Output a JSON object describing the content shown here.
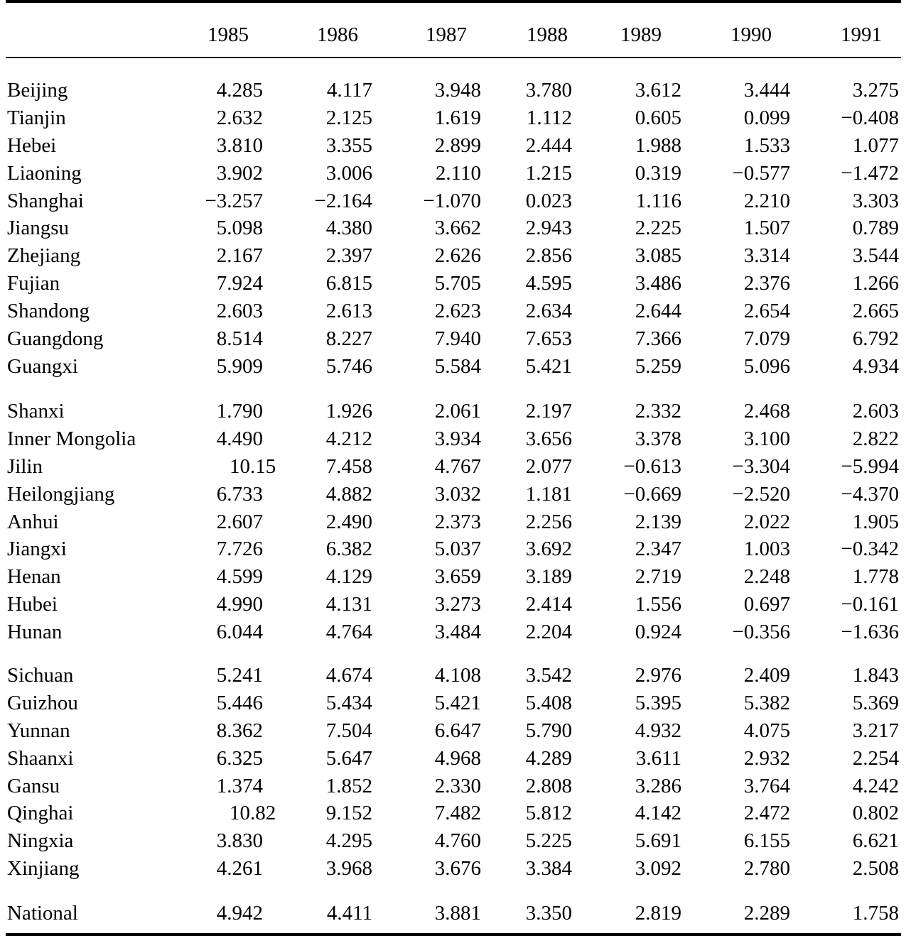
{
  "table": {
    "years": [
      "1985",
      "1986",
      "1987",
      "1988",
      "1989",
      "1990",
      "1991"
    ],
    "groups": [
      {
        "rows": [
          {
            "region": "Beijing",
            "values": [
              "4.285",
              "4.117",
              "3.948",
              "3.780",
              "3.612",
              "3.444",
              "3.275"
            ]
          },
          {
            "region": "Tianjin",
            "values": [
              "2.632",
              "2.125",
              "1.619",
              "1.112",
              "0.605",
              "0.099",
              "−0.408"
            ]
          },
          {
            "region": "Hebei",
            "values": [
              "3.810",
              "3.355",
              "2.899",
              "2.444",
              "1.988",
              "1.533",
              "1.077"
            ]
          },
          {
            "region": "Liaoning",
            "values": [
              "3.902",
              "3.006",
              "2.110",
              "1.215",
              "0.319",
              "−0.577",
              "−1.472"
            ]
          },
          {
            "region": "Shanghai",
            "values": [
              "−3.257",
              "−2.164",
              "−1.070",
              "0.023",
              "1.116",
              "2.210",
              "3.303"
            ]
          },
          {
            "region": "Jiangsu",
            "values": [
              "5.098",
              "4.380",
              "3.662",
              "2.943",
              "2.225",
              "1.507",
              "0.789"
            ]
          },
          {
            "region": "Zhejiang",
            "values": [
              "2.167",
              "2.397",
              "2.626",
              "2.856",
              "3.085",
              "3.314",
              "3.544"
            ]
          },
          {
            "region": "Fujian",
            "values": [
              "7.924",
              "6.815",
              "5.705",
              "4.595",
              "3.486",
              "2.376",
              "1.266"
            ]
          },
          {
            "region": "Shandong",
            "values": [
              "2.603",
              "2.613",
              "2.623",
              "2.634",
              "2.644",
              "2.654",
              "2.665"
            ]
          },
          {
            "region": "Guangdong",
            "values": [
              "8.514",
              "8.227",
              "7.940",
              "7.653",
              "7.366",
              "7.079",
              "6.792"
            ]
          },
          {
            "region": "Guangxi",
            "values": [
              "5.909",
              "5.746",
              "5.584",
              "5.421",
              "5.259",
              "5.096",
              "4.934"
            ]
          }
        ]
      },
      {
        "rows": [
          {
            "region": "Shanxi",
            "values": [
              "1.790",
              "1.926",
              "2.061",
              "2.197",
              "2.332",
              "2.468",
              "2.603"
            ]
          },
          {
            "region": "Inner Mongolia",
            "values": [
              "4.490",
              "4.212",
              "3.934",
              "3.656",
              "3.378",
              "3.100",
              "2.822"
            ]
          },
          {
            "region": "Jilin",
            "values": [
              "10.15",
              "7.458",
              "4.767",
              "2.077",
              "−0.613",
              "−3.304",
              "−5.994"
            ]
          },
          {
            "region": "Heilongjiang",
            "values": [
              "6.733",
              "4.882",
              "3.032",
              "1.181",
              "−0.669",
              "−2.520",
              "−4.370"
            ]
          },
          {
            "region": "Anhui",
            "values": [
              "2.607",
              "2.490",
              "2.373",
              "2.256",
              "2.139",
              "2.022",
              "1.905"
            ]
          },
          {
            "region": "Jiangxi",
            "values": [
              "7.726",
              "6.382",
              "5.037",
              "3.692",
              "2.347",
              "1.003",
              "−0.342"
            ]
          },
          {
            "region": "Henan",
            "values": [
              "4.599",
              "4.129",
              "3.659",
              "3.189",
              "2.719",
              "2.248",
              "1.778"
            ]
          },
          {
            "region": "Hubei",
            "values": [
              "4.990",
              "4.131",
              "3.273",
              "2.414",
              "1.556",
              "0.697",
              "−0.161"
            ]
          },
          {
            "region": "Hunan",
            "values": [
              "6.044",
              "4.764",
              "3.484",
              "2.204",
              "0.924",
              "−0.356",
              "−1.636"
            ]
          }
        ]
      },
      {
        "rows": [
          {
            "region": "Sichuan",
            "values": [
              "5.241",
              "4.674",
              "4.108",
              "3.542",
              "2.976",
              "2.409",
              "1.843"
            ]
          },
          {
            "region": "Guizhou",
            "values": [
              "5.446",
              "5.434",
              "5.421",
              "5.408",
              "5.395",
              "5.382",
              "5.369"
            ]
          },
          {
            "region": "Yunnan",
            "values": [
              "8.362",
              "7.504",
              "6.647",
              "5.790",
              "4.932",
              "4.075",
              "3.217"
            ]
          },
          {
            "region": "Shaanxi",
            "values": [
              "6.325",
              "5.647",
              "4.968",
              "4.289",
              "3.611",
              "2.932",
              "2.254"
            ]
          },
          {
            "region": "Gansu",
            "values": [
              "1.374",
              "1.852",
              "2.330",
              "2.808",
              "3.286",
              "3.764",
              "4.242"
            ]
          },
          {
            "region": "Qinghai",
            "values": [
              "10.82",
              "9.152",
              "7.482",
              "5.812",
              "4.142",
              "2.472",
              "0.802"
            ]
          },
          {
            "region": "Ningxia",
            "values": [
              "3.830",
              "4.295",
              "4.760",
              "5.225",
              "5.691",
              "6.155",
              "6.621"
            ]
          },
          {
            "region": "Xinjiang",
            "values": [
              "4.261",
              "3.968",
              "3.676",
              "3.384",
              "3.092",
              "2.780",
              "2.508"
            ]
          }
        ]
      },
      {
        "rows": [
          {
            "region": "National",
            "values": [
              "4.942",
              "4.411",
              "3.881",
              "3.350",
              "2.819",
              "2.289",
              "1.758"
            ]
          }
        ]
      }
    ]
  }
}
